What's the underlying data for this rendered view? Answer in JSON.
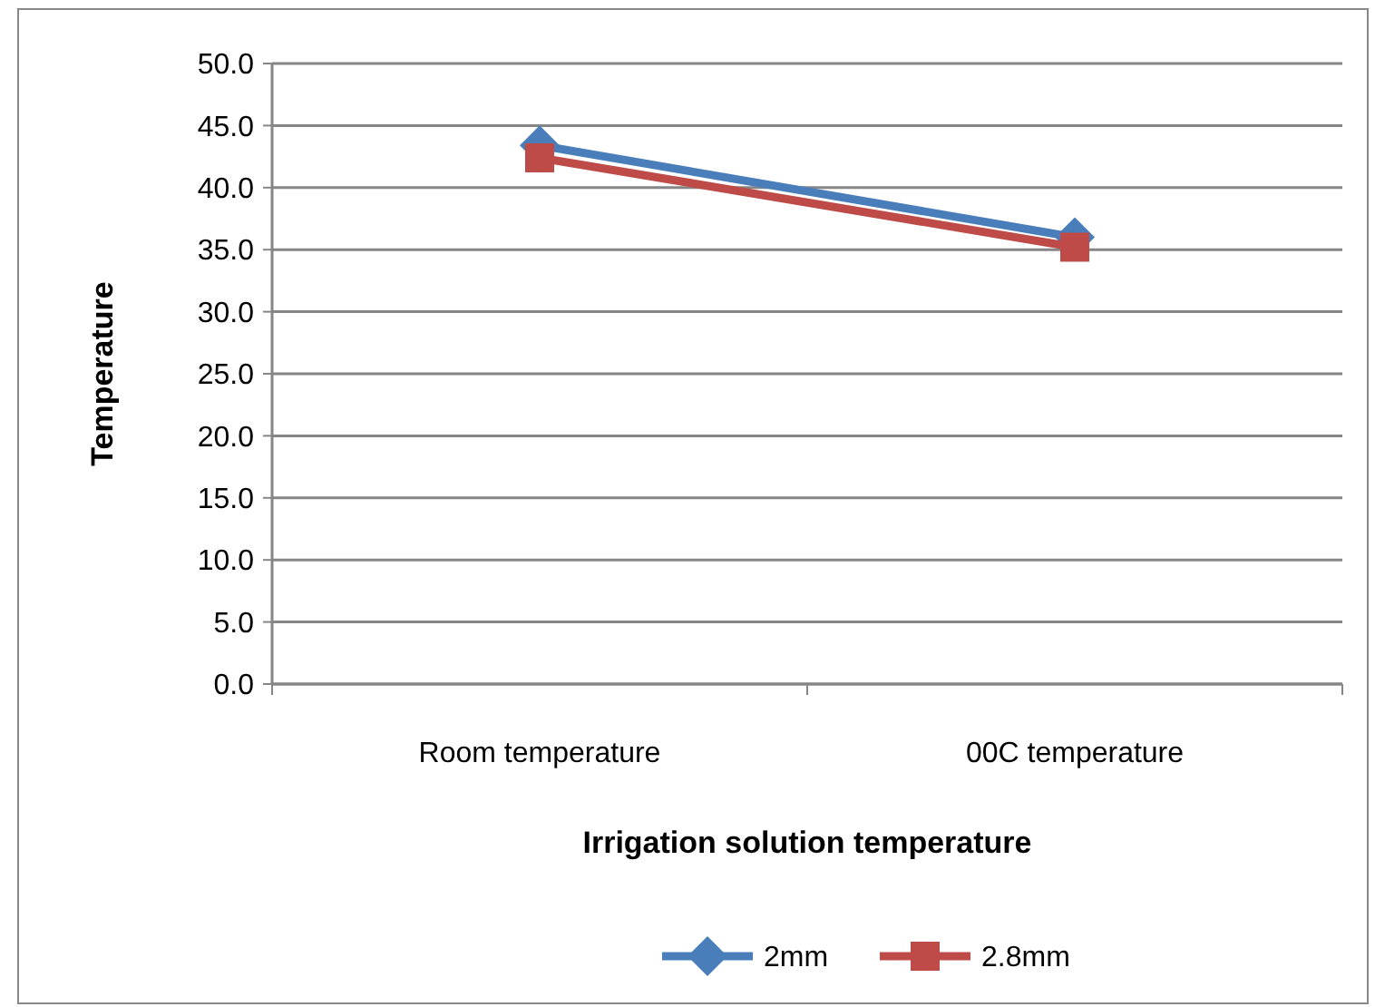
{
  "chart_data": {
    "type": "line",
    "xlabel": "Irrigation solution  temperature",
    "ylabel": "Temperature",
    "categories": [
      "Room temperature",
      "00C temperature"
    ],
    "series": [
      {
        "name": "2mm",
        "color": "#4a7ebb",
        "values": [
          43.4,
          36.0
        ],
        "marker": "diamond"
      },
      {
        "name": "2.8mm",
        "color": "#be4b48",
        "values": [
          42.4,
          35.2
        ],
        "marker": "square"
      }
    ],
    "ylim": [
      0,
      50
    ],
    "yticks": [
      {
        "value": 0,
        "label": "0.0"
      },
      {
        "value": 5,
        "label": "5.0"
      },
      {
        "value": 10,
        "label": "10.0"
      },
      {
        "value": 15,
        "label": "15.0"
      },
      {
        "value": 20,
        "label": "20.0"
      },
      {
        "value": 25,
        "label": "25.0"
      },
      {
        "value": 30,
        "label": "30.0"
      },
      {
        "value": 35,
        "label": "35.0"
      },
      {
        "value": 40,
        "label": "40.0"
      },
      {
        "value": 45,
        "label": "45.0"
      },
      {
        "value": 50,
        "label": "50.0"
      }
    ],
    "grid": "y",
    "legend": "bottom"
  }
}
